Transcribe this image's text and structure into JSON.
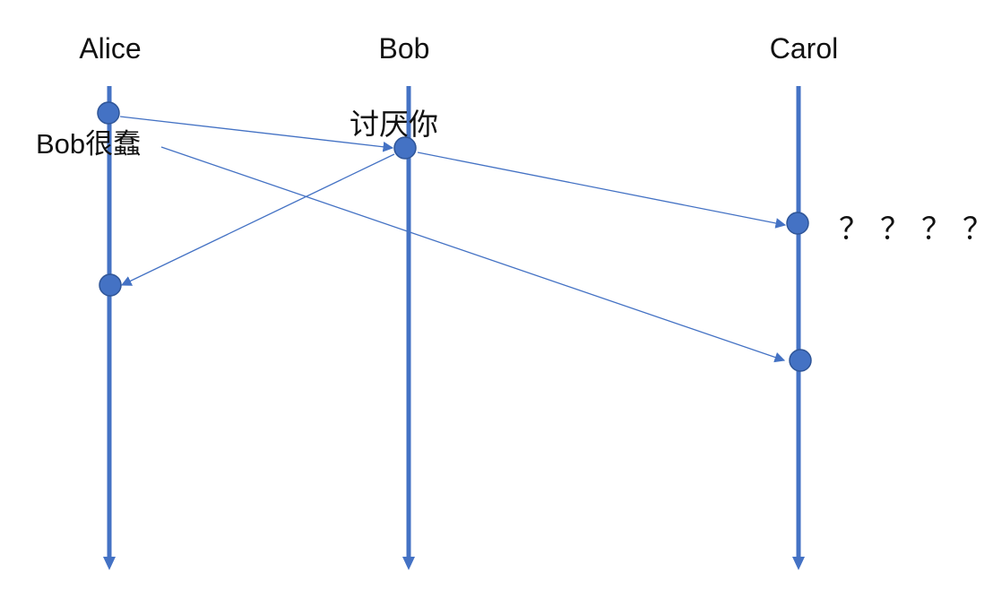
{
  "participants": {
    "alice": "Alice",
    "bob": "Bob",
    "carol": "Carol"
  },
  "notes": {
    "alice_message": "Bob很蠢",
    "bob_message": "讨厌你",
    "carol_reaction": "？？？？"
  },
  "messages": [
    {
      "from": "Alice",
      "to": "Bob",
      "text": "Bob很蠢"
    },
    {
      "from": "Bob",
      "to": "Alice",
      "text": "讨厌你"
    },
    {
      "from": "Bob",
      "to": "Carol",
      "text": "讨厌你"
    },
    {
      "from": "Alice",
      "to": "Carol",
      "text": "Bob很蠢"
    }
  ],
  "colors": {
    "lifeline": "#4472C4",
    "event_node": "#4472C4",
    "text": "#111111"
  }
}
